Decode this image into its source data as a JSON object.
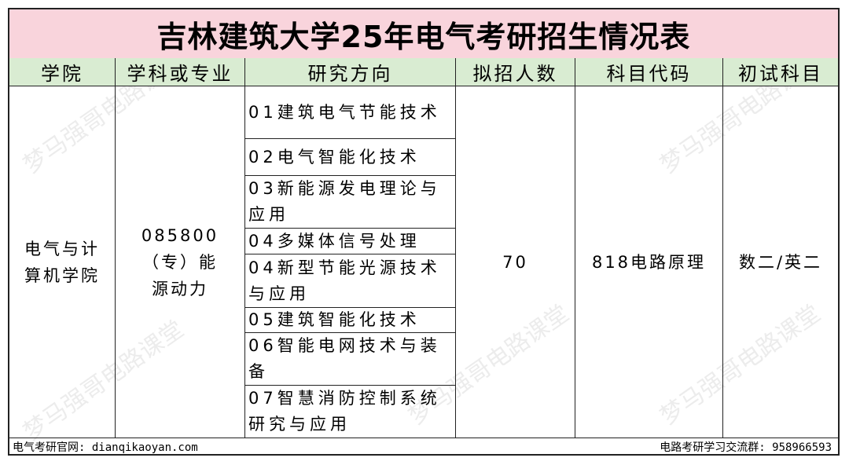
{
  "title": "吉林建筑大学25年电气考研招生情况表",
  "headers": [
    "学院",
    "学科或专业",
    "研究方向",
    "拟招人数",
    "科目代码",
    "初试科目"
  ],
  "row": {
    "college": "电气与计算机学院",
    "major": "085800（专）能源动力",
    "directions": [
      "01建筑电气节能技术",
      "02电气智能化技术",
      "03新能源发电理论与应用",
      "04多媒体信号处理",
      "04新型节能光源技术与应用",
      "05建筑智能化技术",
      "06智能电网技术与装备",
      "07智慧消防控制系统研究与应用"
    ],
    "quota": "70",
    "subject_code": "818电路原理",
    "exam_subjects": "数二/英二"
  },
  "footer": {
    "left": "电气考研官网: dianqikaoyan.com",
    "right": "电路考研学习交流群: 958966593"
  },
  "watermark": "梦马强哥电路课堂",
  "colors": {
    "title_bg": "#f9d4dc",
    "header_bg": "#d9ecd2"
  }
}
